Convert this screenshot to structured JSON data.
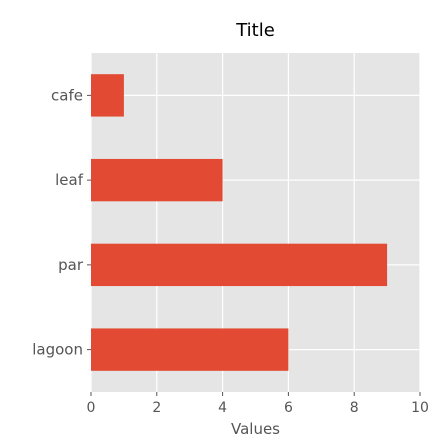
{
  "chart_data": {
    "type": "bar",
    "orientation": "horizontal",
    "title": "Title",
    "xlabel": "Values",
    "ylabel": "",
    "categories": [
      "lagoon",
      "par",
      "leaf",
      "cafe"
    ],
    "values": [
      6,
      9,
      4,
      1
    ],
    "xlim": [
      0,
      10
    ],
    "xticks": [
      0,
      2,
      4,
      6,
      8,
      10
    ],
    "grid": true,
    "colors": {
      "bar": "#e24a33",
      "plot_background": "#e5e5e5",
      "grid": "#ffffff",
      "text": "#555555"
    }
  }
}
